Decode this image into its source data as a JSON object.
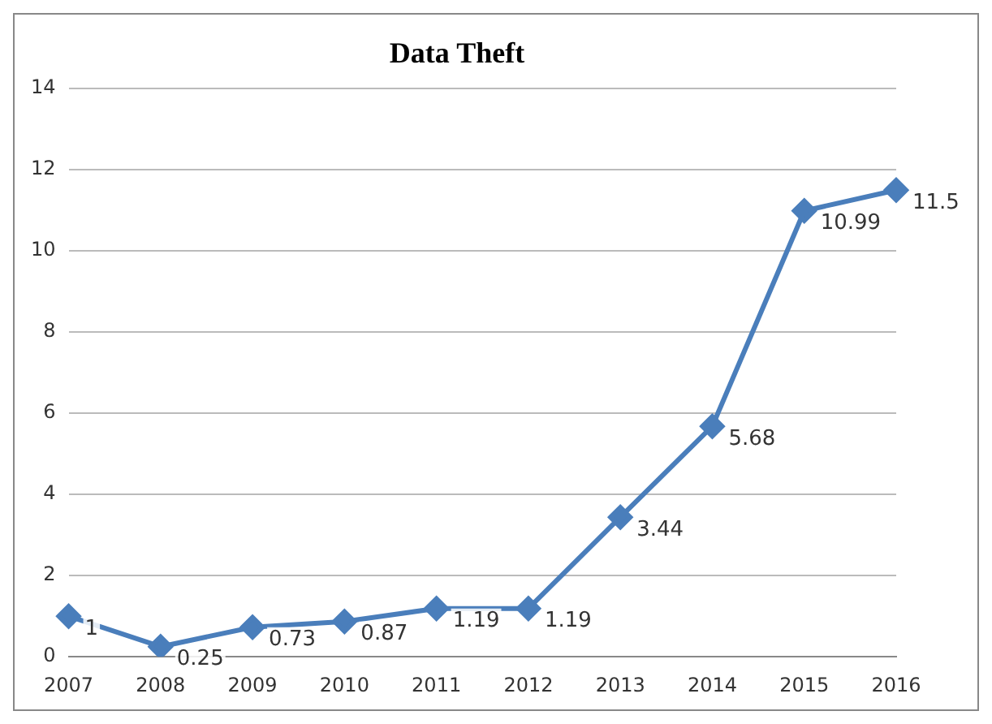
{
  "chart_data": {
    "type": "line",
    "title": "Data Theft",
    "categories": [
      "2007",
      "2008",
      "2009",
      "2010",
      "2011",
      "2012",
      "2013",
      "2014",
      "2015",
      "2016"
    ],
    "series": [
      {
        "color": "#4a7ebb",
        "values": [
          1,
          0.25,
          0.73,
          0.87,
          1.19,
          1.19,
          3.44,
          5.68,
          10.99,
          11.5
        ]
      }
    ],
    "ylim": [
      0,
      14
    ],
    "yticks": [
      0,
      2,
      4,
      6,
      8,
      10,
      12,
      14
    ],
    "grid": "y",
    "legend": false,
    "marker": "diamond",
    "line_style": "solid",
    "data_labels": true
  }
}
